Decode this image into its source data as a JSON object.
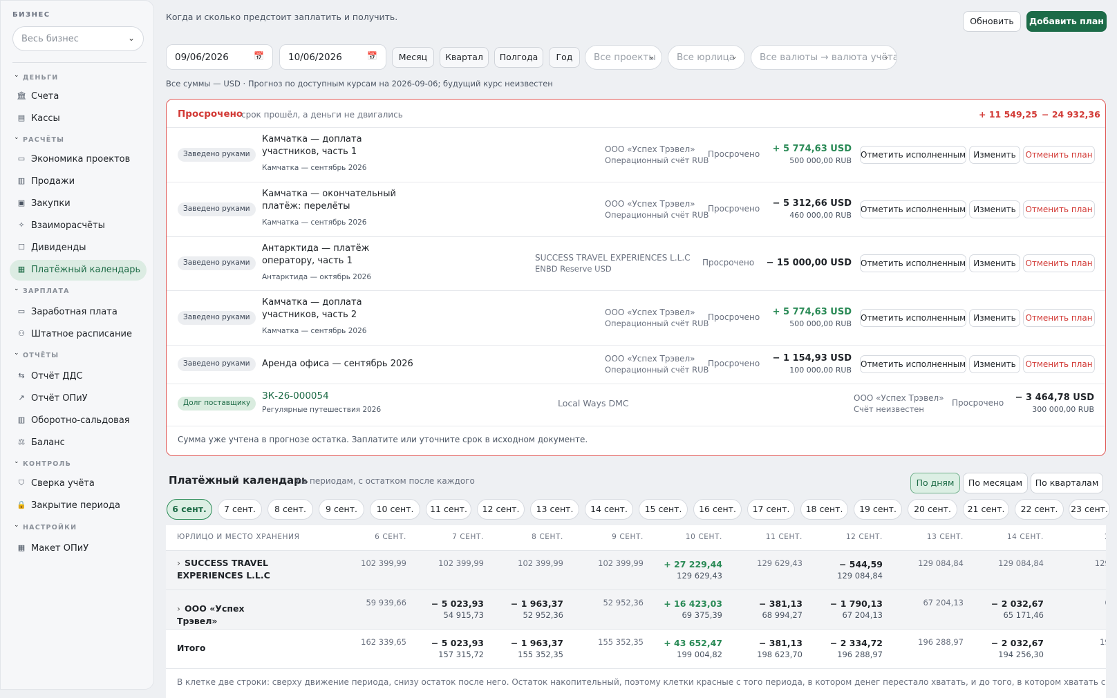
{
  "sidebar": {
    "title": "БИЗНЕС",
    "business_select": "Весь бизнес",
    "sections": [
      {
        "label": "ДЕНЬГИ",
        "items": [
          {
            "label": "Счета",
            "icon": "bank-icon"
          },
          {
            "label": "Кассы",
            "icon": "register-icon"
          }
        ]
      },
      {
        "label": "РАСЧЁТЫ",
        "items": [
          {
            "label": "Экономика проектов",
            "icon": "folder-icon"
          },
          {
            "label": "Продажи",
            "icon": "receipt-icon"
          },
          {
            "label": "Закупки",
            "icon": "cart-icon"
          },
          {
            "label": "Взаиморасчёты",
            "icon": "handshake-icon"
          },
          {
            "label": "Дивиденды",
            "icon": "square-icon"
          },
          {
            "label": "Платёжный календарь",
            "icon": "calendar-icon",
            "active": true
          }
        ]
      },
      {
        "label": "ЗАРПЛАТА",
        "items": [
          {
            "label": "Заработная плата",
            "icon": "cash-icon"
          },
          {
            "label": "Штатное расписание",
            "icon": "people-icon"
          }
        ]
      },
      {
        "label": "ОТЧЁТЫ",
        "items": [
          {
            "label": "Отчёт ДДС",
            "icon": "arrows-icon"
          },
          {
            "label": "Отчёт ОПиУ",
            "icon": "trend-icon"
          },
          {
            "label": "Оборотно-сальдовая",
            "icon": "columns-icon"
          },
          {
            "label": "Баланс",
            "icon": "scales-icon"
          }
        ]
      },
      {
        "label": "КОНТРОЛЬ",
        "items": [
          {
            "label": "Сверка учёта",
            "icon": "shield-check-icon"
          },
          {
            "label": "Закрытие периода",
            "icon": "lock-icon"
          }
        ]
      },
      {
        "label": "НАСТРОЙКИ",
        "items": [
          {
            "label": "Макет ОПиУ",
            "icon": "table-icon"
          }
        ]
      }
    ]
  },
  "header": {
    "subtitle": "Когда и сколько предстоит заплатить и получить.",
    "refresh": "Обновить",
    "add_plan": "Добавить план"
  },
  "filters": {
    "date_from": "09/06/2026",
    "date_to": "10/06/2026",
    "periods": [
      "Месяц",
      "Квартал",
      "Полгода",
      "Год"
    ],
    "projects": "Все проекты",
    "entities": "Все юрлица",
    "currencies": "Все валюты → валюта учёта"
  },
  "note": "Все суммы — USD · Прогноз по доступным курсам на 2026-09-06; будущий курс неизвестен",
  "overdue": {
    "title": "Просрочено",
    "subtitle": "срок прошёл, а деньги не двигались",
    "total_in": "+ 11 549,25",
    "total_out": "− 24 932,36",
    "actions": {
      "done": "Отметить исполненным",
      "edit": "Изменить",
      "cancel": "Отменить план"
    },
    "rows": [
      {
        "badge": "Заведено руками",
        "title": "Камчатка — доплата участников, часть 1",
        "sub": "Камчатка — сентябрь 2026",
        "org": "ООО «Успех Трэвел»",
        "account": "Операционный счёт RUB",
        "status": "Просрочено",
        "amount": "+ 5 774,63 USD",
        "orig": "500 000,00 RUB"
      },
      {
        "badge": "Заведено руками",
        "title": "Камчатка — окончательный платёж: перелёты",
        "sub": "Камчатка — сентябрь 2026",
        "org": "ООО «Успех Трэвел»",
        "account": "Операционный счёт RUB",
        "status": "Просрочено",
        "amount": "− 5 312,66 USD",
        "orig": "460 000,00 RUB"
      },
      {
        "badge": "Заведено руками",
        "title": "Антарктида — платёж оператору, часть 1",
        "sub": "Антарктида — октябрь 2026",
        "org": "SUCCESS TRAVEL EXPERIENCES L.L.C",
        "account": "ENBD Reserve USD",
        "status": "Просрочено",
        "amount": "− 15 000,00 USD",
        "orig": ""
      },
      {
        "badge": "Заведено руками",
        "title": "Камчатка — доплата участников, часть 2",
        "sub": "Камчатка — сентябрь 2026",
        "org": "ООО «Успех Трэвел»",
        "account": "Операционный счёт RUB",
        "status": "Просрочено",
        "amount": "+ 5 774,63 USD",
        "orig": "500 000,00 RUB"
      },
      {
        "badge": "Заведено руками",
        "title": "Аренда офиса — сентябрь 2026",
        "sub": "",
        "org": "ООО «Успех Трэвел»",
        "account": "Операционный счёт RUB",
        "status": "Просрочено",
        "amount": "− 1 154,93 USD",
        "orig": "100 000,00 RUB"
      }
    ],
    "debt_row": {
      "badge": "Долг поставщику",
      "title": "ЗК-26-000054",
      "sub": "Регулярные путешествия 2026",
      "counterparty": "Local Ways DMC",
      "org": "ООО «Успех Трэвел»",
      "account": "Счёт неизвестен",
      "status": "Просрочено",
      "amount": "− 3 464,78 USD",
      "orig": "300 000,00 RUB"
    },
    "footer": "Сумма уже учтена в прогнозе остатка. Заплатите или уточните срок в исходном документе."
  },
  "calendar": {
    "title": "Платёжный календарь",
    "subtitle": "по периодам, с остатком после каждого",
    "toggles": [
      "По дням",
      "По месяцам",
      "По кварталам"
    ],
    "days": [
      "6 сент.",
      "7 сент.",
      "8 сент.",
      "9 сент.",
      "10 сент.",
      "11 сент.",
      "12 сент.",
      "13 сент.",
      "14 сент.",
      "15 сент.",
      "16 сент.",
      "17 сент.",
      "18 сент.",
      "19 сент.",
      "20 сент.",
      "21 сент.",
      "22 сент.",
      "23 сент."
    ],
    "col_header": "ЮРЛИЦО И МЕСТО ХРАНЕНИЯ",
    "columns": [
      "6 СЕНТ.",
      "7 СЕНТ.",
      "8 СЕНТ.",
      "9 СЕНТ.",
      "10 СЕНТ.",
      "11 СЕНТ.",
      "12 СЕНТ.",
      "13 СЕНТ.",
      "14 СЕНТ.",
      "15 С"
    ],
    "rows": [
      {
        "name": "SUCCESS TRAVEL EXPERIENCES L.L.C",
        "cells": [
          {
            "m": "",
            "b": "102 399,99"
          },
          {
            "m": "",
            "b": "102 399,99"
          },
          {
            "m": "",
            "b": "102 399,99"
          },
          {
            "m": "",
            "b": "102 399,99"
          },
          {
            "m": "+ 27 229,44",
            "b": "129 629,43"
          },
          {
            "m": "",
            "b": "129 629,43"
          },
          {
            "m": "− 544,59",
            "b": "129 084,84"
          },
          {
            "m": "",
            "b": "129 084,84"
          },
          {
            "m": "",
            "b": "129 084,84"
          },
          {
            "m": "",
            "b": "129 08"
          }
        ]
      },
      {
        "name": "ООО «Успех Трэвел»",
        "cells": [
          {
            "m": "",
            "b": "59 939,66"
          },
          {
            "m": "− 5 023,93",
            "b": "54 915,73"
          },
          {
            "m": "− 1 963,37",
            "b": "52 952,36"
          },
          {
            "m": "",
            "b": "52 952,36"
          },
          {
            "m": "+ 16 423,03",
            "b": "69 375,39"
          },
          {
            "m": "− 381,13",
            "b": "68 994,27"
          },
          {
            "m": "− 1 790,13",
            "b": "67 204,13"
          },
          {
            "m": "",
            "b": "67 204,13"
          },
          {
            "m": "− 2 032,67",
            "b": "65 171,46"
          },
          {
            "m": "",
            "b": "65 1"
          }
        ]
      },
      {
        "name": "Итого",
        "cells": [
          {
            "m": "",
            "b": "162 339,65"
          },
          {
            "m": "− 5 023,93",
            "b": "157 315,72"
          },
          {
            "m": "− 1 963,37",
            "b": "155 352,35"
          },
          {
            "m": "",
            "b": "155 352,35"
          },
          {
            "m": "+ 43 652,47",
            "b": "199 004,82"
          },
          {
            "m": "− 381,13",
            "b": "198 623,70"
          },
          {
            "m": "− 2 334,72",
            "b": "196 288,97"
          },
          {
            "m": "",
            "b": "196 288,97"
          },
          {
            "m": "− 2 032,67",
            "b": "194 256,30"
          },
          {
            "m": "",
            "b": "194 2"
          }
        ]
      }
    ],
    "footer": "В клетке две строки: сверху движение периода, снизу остаток после него. Остаток накопительный, поэтому клетки красные с того периода, в котором денег перестало хватать, и до того, в котором хватать снова стало."
  }
}
